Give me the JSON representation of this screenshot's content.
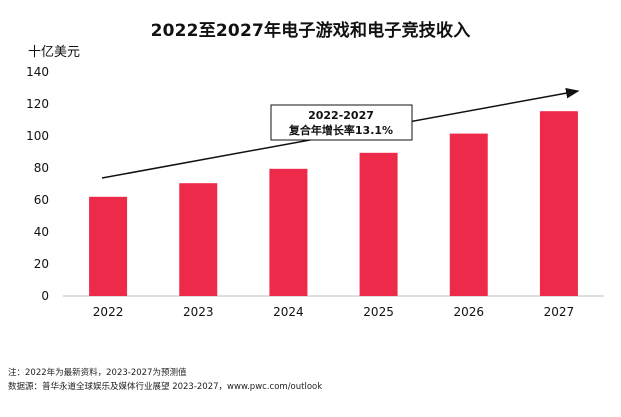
{
  "chart_data": {
    "type": "bar",
    "title": "2022至2027年电子游戏和电子竞技收入",
    "ylabel": "十亿美元",
    "xlabel": "",
    "categories": [
      "2022",
      "2023",
      "2024",
      "2025",
      "2026",
      "2027"
    ],
    "values": [
      62,
      70.5,
      79.5,
      89.5,
      101.5,
      115.5
    ],
    "ylim": [
      0,
      140
    ],
    "yticks": [
      0,
      20,
      40,
      60,
      80,
      100,
      120,
      140
    ],
    "grid": false,
    "bar_color": "#EE2A4A",
    "annotation": {
      "line1": "2022-2027",
      "line2": "复合年增长率13.1%"
    }
  },
  "footer": {
    "note": "注：2022年为最新资料，2023-2027为预测值",
    "source": "数据源：普华永道全球娱乐及媒体行业展望 2023-2027，www.pwc.com/outlook"
  }
}
